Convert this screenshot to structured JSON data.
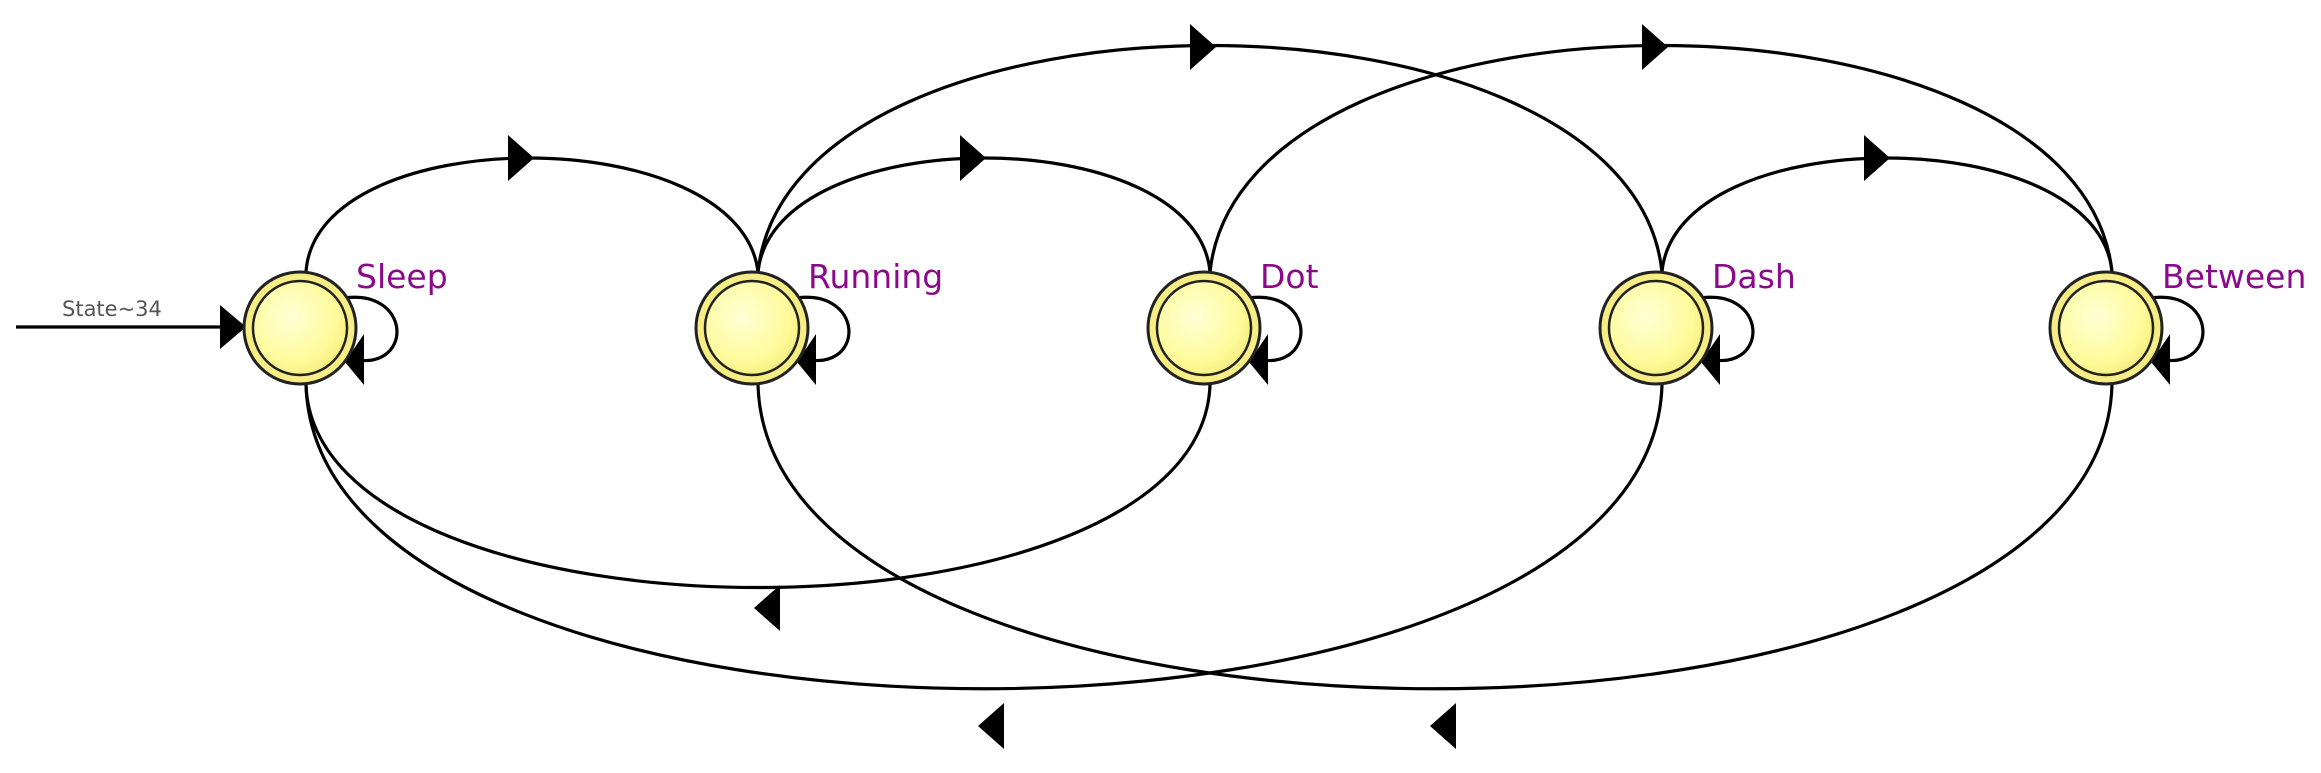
{
  "diagram": {
    "entry": {
      "label": "State~34",
      "target": "sleep"
    },
    "states": [
      {
        "id": "sleep",
        "label": "Sleep"
      },
      {
        "id": "running",
        "label": "Running"
      },
      {
        "id": "dot",
        "label": "Dot"
      },
      {
        "id": "dash",
        "label": "Dash"
      },
      {
        "id": "between",
        "label": "Between"
      }
    ],
    "transitions": [
      {
        "from": "sleep",
        "to": "sleep"
      },
      {
        "from": "running",
        "to": "running"
      },
      {
        "from": "dot",
        "to": "dot"
      },
      {
        "from": "dash",
        "to": "dash"
      },
      {
        "from": "between",
        "to": "between"
      },
      {
        "from": "sleep",
        "to": "running"
      },
      {
        "from": "running",
        "to": "dot"
      },
      {
        "from": "running",
        "to": "dash"
      },
      {
        "from": "dot",
        "to": "between"
      },
      {
        "from": "dash",
        "to": "between"
      },
      {
        "from": "dot",
        "to": "sleep"
      },
      {
        "from": "dash",
        "to": "sleep"
      },
      {
        "from": "between",
        "to": "running"
      }
    ]
  },
  "colors": {
    "state_fill": "#ffff9c",
    "state_stroke": "#222222",
    "label": "#8b0a8b",
    "entry_label": "#555555",
    "edge": "#000000"
  }
}
